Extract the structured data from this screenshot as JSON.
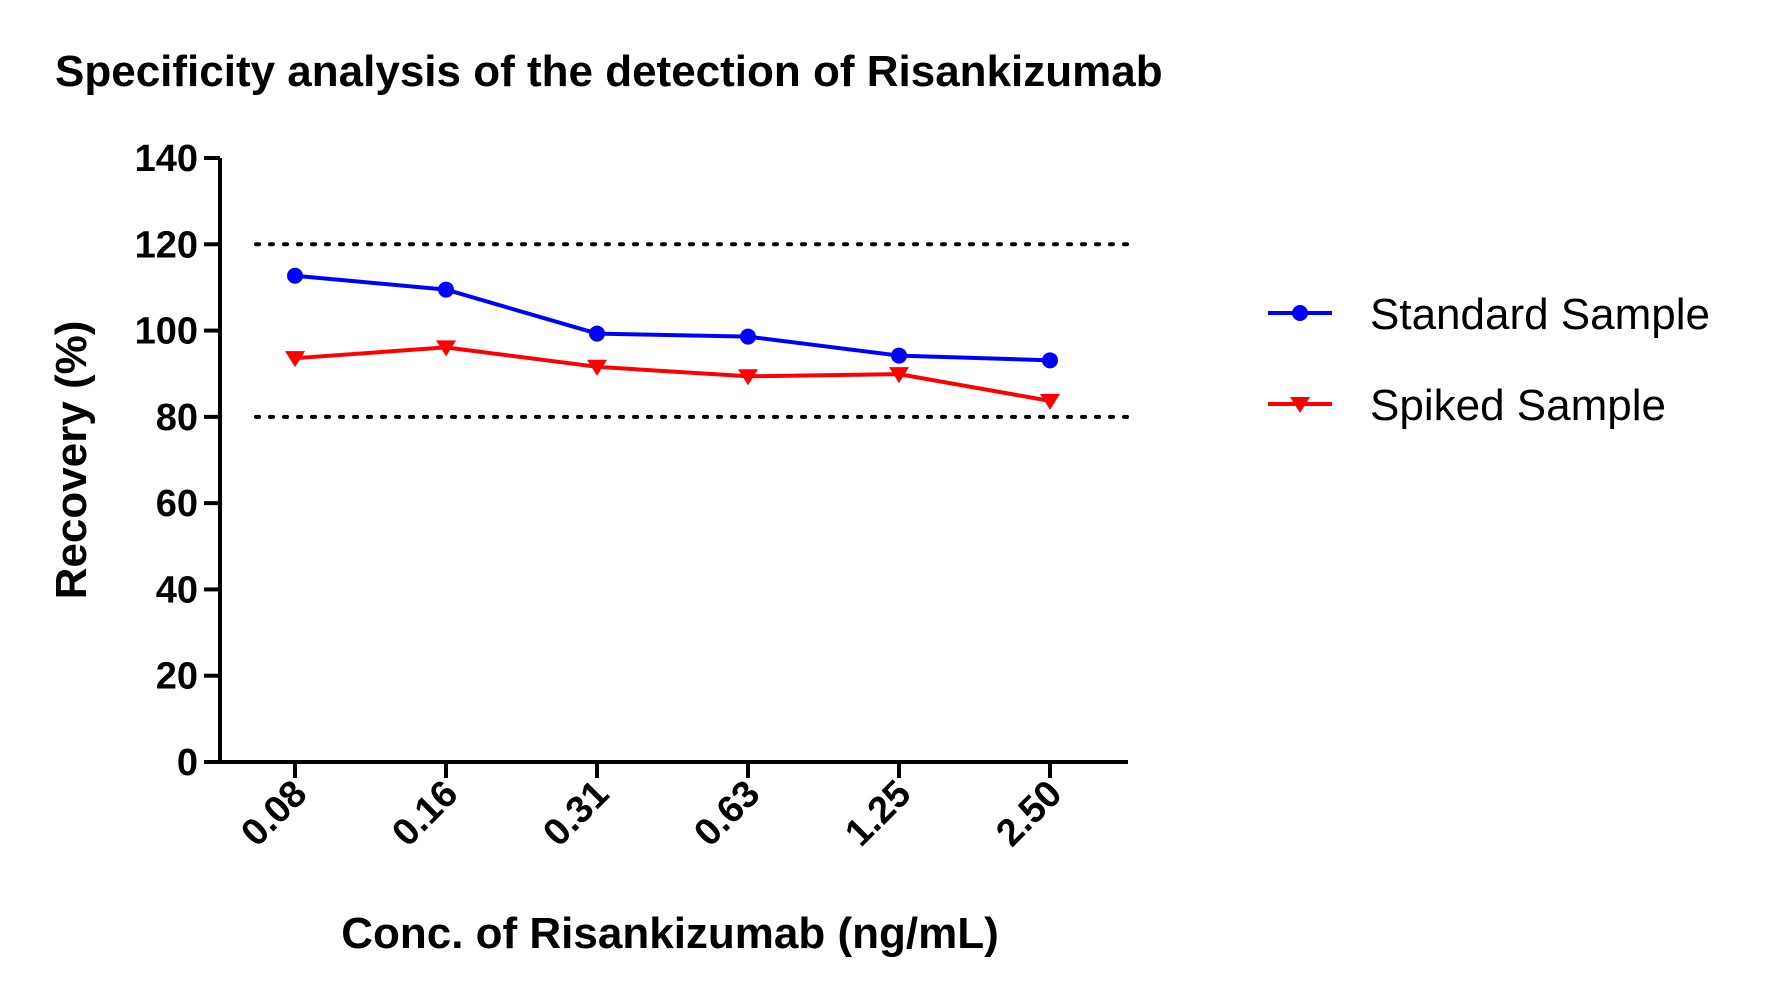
{
  "chart_data": {
    "type": "line",
    "title": "Specificity analysis of the detection of Risankizumab",
    "xlabel": "Conc. of Risankizumab (ng/mL)",
    "ylabel": "Recovery (%)",
    "categories": [
      "0.08",
      "0.16",
      "0.31",
      "0.63",
      "1.25",
      "2.50"
    ],
    "yticks": [
      "0",
      "20",
      "40",
      "60",
      "80",
      "100",
      "120",
      "140"
    ],
    "ylim": [
      0,
      140
    ],
    "reference_lines": [
      80,
      120
    ],
    "grid": false,
    "legend_position": "right",
    "series": [
      {
        "name": "Standard Sample",
        "color": "#0000ff",
        "marker": "circle",
        "values": [
          112.7,
          109.5,
          99.3,
          98.6,
          94.2,
          93.1
        ]
      },
      {
        "name": "Spiked Sample",
        "color": "#ff0000",
        "marker": "triangle-down",
        "values": [
          93.6,
          96.1,
          91.6,
          89.4,
          89.9,
          83.7
        ]
      }
    ]
  }
}
